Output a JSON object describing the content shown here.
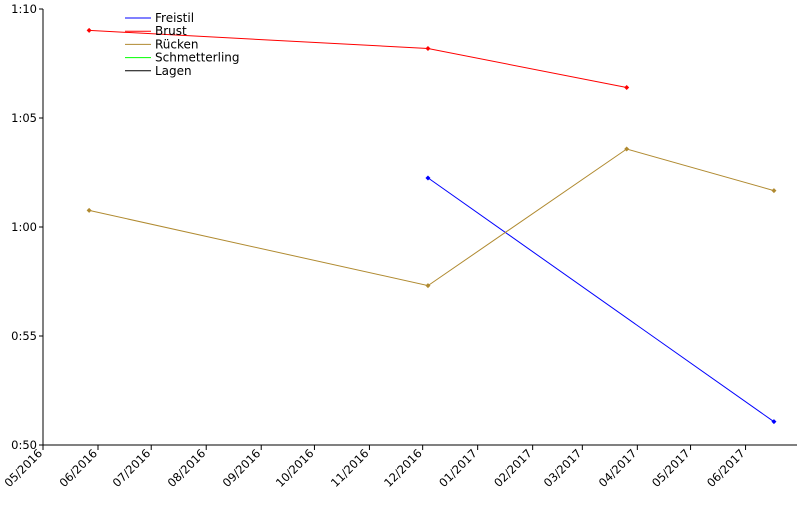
{
  "chart_data": {
    "type": "line",
    "title": "",
    "xlabel": "",
    "ylabel": "",
    "x_ticks": [
      "05/2016",
      "06/2016",
      "07/2016",
      "08/2016",
      "09/2016",
      "10/2016",
      "11/2016",
      "12/2016",
      "01/2017",
      "02/2017",
      "03/2017",
      "04/2017",
      "05/2017",
      "06/2017"
    ],
    "y_ticks": [
      "0:50",
      "0:55",
      "1:00",
      "1:05",
      "1:10"
    ],
    "xlim": [
      "2016-05-01",
      "2017-06-30"
    ],
    "ylim": [
      "0:50",
      "1:10"
    ],
    "legend_position": "top-left",
    "grid": false,
    "series": [
      {
        "name": "Freistil",
        "color": "#0000ff",
        "points": [
          {
            "x": "2016-12-04",
            "y": "1:02.25"
          },
          {
            "x": "2017-06-17",
            "y": "0:51.07"
          }
        ]
      },
      {
        "name": "Brust",
        "color": "#ff0000",
        "points": [
          {
            "x": "2016-05-27",
            "y": "1:09.02"
          },
          {
            "x": "2016-12-04",
            "y": "1:08.19"
          },
          {
            "x": "2017-03-26",
            "y": "1:06.40"
          }
        ]
      },
      {
        "name": "Rücken",
        "color": "#b08a30",
        "points": [
          {
            "x": "2016-05-27",
            "y": "1:00.76"
          },
          {
            "x": "2016-12-04",
            "y": "0:57.31"
          },
          {
            "x": "2017-03-26",
            "y": "1:03.58"
          },
          {
            "x": "2017-06-17",
            "y": "1:01.67"
          }
        ]
      },
      {
        "name": "Schmetterling",
        "color": "#00ff00",
        "points": []
      },
      {
        "name": "Lagen",
        "color": "#000000",
        "points": []
      }
    ]
  }
}
